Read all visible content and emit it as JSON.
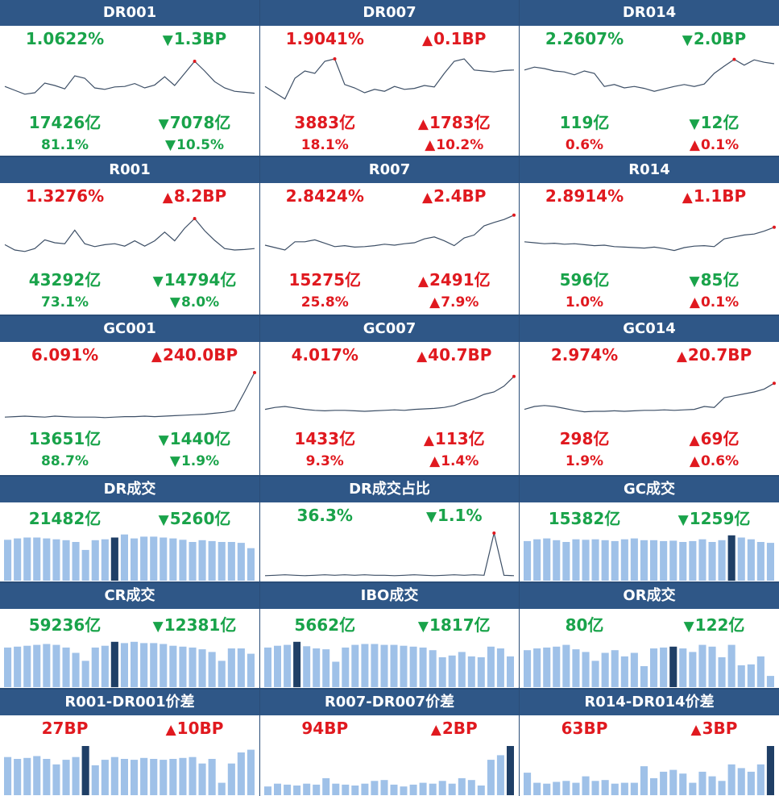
{
  "colors": {
    "header": "#2f5787",
    "up": "#e0191f",
    "down": "#19a34a",
    "bar": "#9fc1e8",
    "bar_highlight": "#1f3f66",
    "line": "#3d4f66",
    "dot": "#e0191f"
  },
  "arrows": {
    "up": "▲",
    "down": "▼"
  },
  "panels": [
    {
      "title": "DR001",
      "metrics": [
        {
          "left": "1.0622%",
          "right": "1.3BP",
          "dir": "down"
        },
        {
          "left": "17426亿",
          "right": "7078亿",
          "dir": "down"
        },
        {
          "left": "81.1%",
          "right": "10.5%",
          "dir": "down"
        }
      ]
    },
    {
      "title": "DR007",
      "metrics": [
        {
          "left": "1.9041%",
          "right": "0.1BP",
          "dir": "up"
        },
        {
          "left": "3883亿",
          "right": "1783亿",
          "dir": "up"
        },
        {
          "left": "18.1%",
          "right": "10.2%",
          "dir": "up"
        }
      ]
    },
    {
      "title": "DR014",
      "metrics": [
        {
          "left": "2.2607%",
          "right": "2.0BP",
          "dir": "down"
        },
        {
          "left": "119亿",
          "right": "12亿",
          "dir": "down"
        },
        {
          "left": "0.6%",
          "right": "0.1%",
          "dir": "up"
        }
      ]
    },
    {
      "title": "R001",
      "metrics": [
        {
          "left": "1.3276%",
          "right": "8.2BP",
          "dir": "up"
        },
        {
          "left": "43292亿",
          "right": "14794亿",
          "dir": "down"
        },
        {
          "left": "73.1%",
          "right": "8.0%",
          "dir": "down"
        }
      ]
    },
    {
      "title": "R007",
      "metrics": [
        {
          "left": "2.8424%",
          "right": "2.4BP",
          "dir": "up"
        },
        {
          "left": "15275亿",
          "right": "2491亿",
          "dir": "up"
        },
        {
          "left": "25.8%",
          "right": "7.9%",
          "dir": "up"
        }
      ]
    },
    {
      "title": "R014",
      "metrics": [
        {
          "left": "2.8914%",
          "right": "1.1BP",
          "dir": "up"
        },
        {
          "left": "596亿",
          "right": "85亿",
          "dir": "down"
        },
        {
          "left": "1.0%",
          "right": "0.1%",
          "dir": "up"
        }
      ]
    },
    {
      "title": "GC001",
      "metrics": [
        {
          "left": "6.091%",
          "right": "240.0BP",
          "dir": "up"
        },
        {
          "left": "13651亿",
          "right": "1440亿",
          "dir": "down"
        },
        {
          "left": "88.7%",
          "right": "1.9%",
          "dir": "down"
        }
      ]
    },
    {
      "title": "GC007",
      "metrics": [
        {
          "left": "4.017%",
          "right": "40.7BP",
          "dir": "up"
        },
        {
          "left": "1433亿",
          "right": "113亿",
          "dir": "up"
        },
        {
          "left": "9.3%",
          "right": "1.4%",
          "dir": "up"
        }
      ]
    },
    {
      "title": "GC014",
      "metrics": [
        {
          "left": "2.974%",
          "right": "20.7BP",
          "dir": "up"
        },
        {
          "left": "298亿",
          "right": "69亿",
          "dir": "up"
        },
        {
          "left": "1.9%",
          "right": "0.6%",
          "dir": "up"
        }
      ]
    },
    {
      "title": "DR成交",
      "metrics": [
        {
          "left": "21482亿",
          "right": "5260亿",
          "dir": "down"
        }
      ]
    },
    {
      "title": "DR成交占比",
      "metrics": [
        {
          "left": "36.3%",
          "right": "1.1%",
          "dir": "down"
        }
      ]
    },
    {
      "title": "GC成交",
      "metrics": [
        {
          "left": "15382亿",
          "right": "1259亿",
          "dir": "down"
        }
      ]
    },
    {
      "title": "CR成交",
      "metrics": [
        {
          "left": "59236亿",
          "right": "12381亿",
          "dir": "down"
        }
      ]
    },
    {
      "title": "IBO成交",
      "metrics": [
        {
          "left": "5662亿",
          "right": "1817亿",
          "dir": "down"
        }
      ]
    },
    {
      "title": "OR成交",
      "metrics": [
        {
          "left": "80亿",
          "right": "122亿",
          "dir": "down"
        }
      ]
    },
    {
      "title": "R001-DR001价差",
      "metrics": [
        {
          "left": "27BP",
          "right": "10BP",
          "dir": "up"
        }
      ]
    },
    {
      "title": "R007-DR007价差",
      "metrics": [
        {
          "left": "94BP",
          "right": "2BP",
          "dir": "up"
        }
      ]
    },
    {
      "title": "R014-DR014价差",
      "metrics": [
        {
          "left": "63BP",
          "right": "3BP",
          "dir": "up"
        }
      ]
    }
  ],
  "chart_data": [
    {
      "type": "line",
      "panel": "DR001",
      "ylim": [
        0,
        100
      ],
      "values": [
        38,
        30,
        22,
        25,
        45,
        40,
        33,
        60,
        55,
        35,
        32,
        37,
        38,
        44,
        35,
        41,
        58,
        40,
        65,
        90,
        70,
        48,
        35,
        28,
        26,
        24
      ]
    },
    {
      "type": "line",
      "panel": "DR007",
      "ylim": [
        0,
        100
      ],
      "values": [
        38,
        25,
        12,
        55,
        70,
        65,
        90,
        95,
        42,
        35,
        25,
        32,
        28,
        38,
        32,
        34,
        40,
        37,
        65,
        90,
        95,
        72,
        70,
        68,
        71,
        72
      ]
    },
    {
      "type": "line",
      "panel": "DR014",
      "ylim": [
        0,
        100
      ],
      "values": [
        72,
        78,
        75,
        70,
        68,
        62,
        70,
        65,
        38,
        42,
        35,
        38,
        34,
        28,
        33,
        38,
        42,
        38,
        43,
        65,
        80,
        94,
        82,
        93,
        88,
        85
      ]
    },
    {
      "type": "line",
      "panel": "R001",
      "ylim": [
        0,
        100
      ],
      "values": [
        36,
        25,
        22,
        28,
        46,
        40,
        38,
        66,
        38,
        32,
        36,
        38,
        33,
        44,
        33,
        44,
        62,
        44,
        70,
        90,
        65,
        45,
        28,
        25,
        26,
        28
      ]
    },
    {
      "type": "line",
      "panel": "R007",
      "ylim": [
        0,
        100
      ],
      "values": [
        35,
        30,
        25,
        42,
        42,
        46,
        39,
        32,
        34,
        31,
        32,
        34,
        37,
        35,
        38,
        40,
        48,
        52,
        44,
        34,
        50,
        56,
        75,
        82,
        88,
        97
      ]
    },
    {
      "type": "line",
      "panel": "R014",
      "ylim": [
        0,
        100
      ],
      "values": [
        42,
        40,
        38,
        39,
        37,
        38,
        36,
        34,
        35,
        32,
        31,
        30,
        29,
        31,
        28,
        24,
        30,
        33,
        34,
        32,
        48,
        52,
        56,
        58,
        64,
        72
      ]
    },
    {
      "type": "line",
      "panel": "GC001",
      "ylim": [
        0,
        100
      ],
      "values": [
        8,
        9,
        10,
        9,
        8,
        10,
        9,
        8,
        8,
        8,
        7,
        8,
        9,
        9,
        10,
        9,
        10,
        11,
        12,
        13,
        14,
        16,
        18,
        22,
        60,
        100
      ]
    },
    {
      "type": "line",
      "panel": "GC007",
      "ylim": [
        0,
        100
      ],
      "values": [
        24,
        28,
        30,
        27,
        24,
        22,
        21,
        22,
        22,
        21,
        20,
        21,
        22,
        23,
        22,
        24,
        25,
        26,
        28,
        32,
        40,
        46,
        55,
        60,
        72,
        92
      ]
    },
    {
      "type": "line",
      "panel": "GC014",
      "ylim": [
        0,
        100
      ],
      "values": [
        24,
        30,
        32,
        30,
        26,
        22,
        19,
        20,
        20,
        21,
        20,
        21,
        22,
        22,
        23,
        22,
        23,
        24,
        30,
        28,
        48,
        52,
        56,
        60,
        66,
        78
      ]
    },
    {
      "type": "bar",
      "panel": "DR成交",
      "ylim": [
        0,
        100
      ],
      "highlight_index": 11,
      "values": [
        85,
        88,
        90,
        90,
        88,
        86,
        84,
        80,
        62,
        84,
        86,
        90,
        97,
        88,
        92,
        92,
        90,
        88,
        85,
        80,
        84,
        82,
        80,
        80,
        78,
        66
      ]
    },
    {
      "type": "line",
      "panel": "DR成交占比",
      "ylim": [
        0,
        100
      ],
      "values": [
        4,
        5,
        6,
        5,
        4,
        5,
        6,
        5,
        6,
        5,
        6,
        5,
        5,
        4,
        5,
        6,
        5,
        4,
        5,
        6,
        5,
        6,
        5,
        100,
        5,
        4
      ]
    },
    {
      "type": "bar",
      "panel": "GC成交",
      "ylim": [
        0,
        100
      ],
      "highlight_index": 21,
      "values": [
        82,
        86,
        88,
        84,
        80,
        86,
        85,
        86,
        84,
        82,
        86,
        88,
        84,
        84,
        82,
        83,
        80,
        82,
        86,
        80,
        84,
        95,
        90,
        86,
        80,
        78
      ]
    },
    {
      "type": "bar",
      "panel": "CR成交",
      "ylim": [
        0,
        100
      ],
      "highlight_index": 11,
      "values": [
        82,
        84,
        86,
        88,
        90,
        88,
        82,
        70,
        52,
        82,
        86,
        95,
        92,
        95,
        92,
        92,
        90,
        86,
        84,
        82,
        78,
        72,
        52,
        80,
        80,
        68
      ]
    },
    {
      "type": "bar",
      "panel": "IBO成交",
      "ylim": [
        0,
        100
      ],
      "highlight_index": 3,
      "values": [
        82,
        86,
        88,
        95,
        85,
        80,
        78,
        50,
        82,
        88,
        90,
        90,
        88,
        88,
        86,
        84,
        82,
        76,
        60,
        64,
        72,
        62,
        60,
        84,
        80,
        62
      ]
    },
    {
      "type": "bar",
      "panel": "OR成交",
      "ylim": [
        0,
        100
      ],
      "highlight_index": 15,
      "values": [
        76,
        80,
        82,
        84,
        88,
        78,
        72,
        52,
        70,
        76,
        62,
        70,
        40,
        80,
        82,
        84,
        80,
        72,
        88,
        84,
        60,
        88,
        42,
        44,
        62,
        18
      ]
    },
    {
      "type": "bar",
      "panel": "R001-DR001价差",
      "ylim": [
        0,
        100
      ],
      "highlight_index": 8,
      "values": [
        76,
        72,
        74,
        78,
        72,
        60,
        70,
        76,
        100,
        58,
        70,
        76,
        72,
        70,
        74,
        72,
        70,
        72,
        74,
        76,
        62,
        72,
        20,
        62,
        86,
        92
      ]
    },
    {
      "type": "bar",
      "panel": "R007-DR007价差",
      "ylim": [
        0,
        100
      ],
      "highlight_index": 25,
      "values": [
        12,
        18,
        16,
        14,
        18,
        16,
        30,
        18,
        16,
        14,
        18,
        24,
        26,
        16,
        12,
        16,
        20,
        18,
        24,
        18,
        30,
        26,
        14,
        70,
        80,
        100
      ]
    },
    {
      "type": "bar",
      "panel": "R014-DR014价差",
      "ylim": [
        0,
        100
      ],
      "highlight_index": 25,
      "values": [
        42,
        20,
        18,
        22,
        24,
        20,
        34,
        24,
        26,
        18,
        20,
        20,
        56,
        30,
        44,
        48,
        40,
        20,
        44,
        34,
        24,
        60,
        52,
        44,
        60,
        100
      ]
    }
  ]
}
